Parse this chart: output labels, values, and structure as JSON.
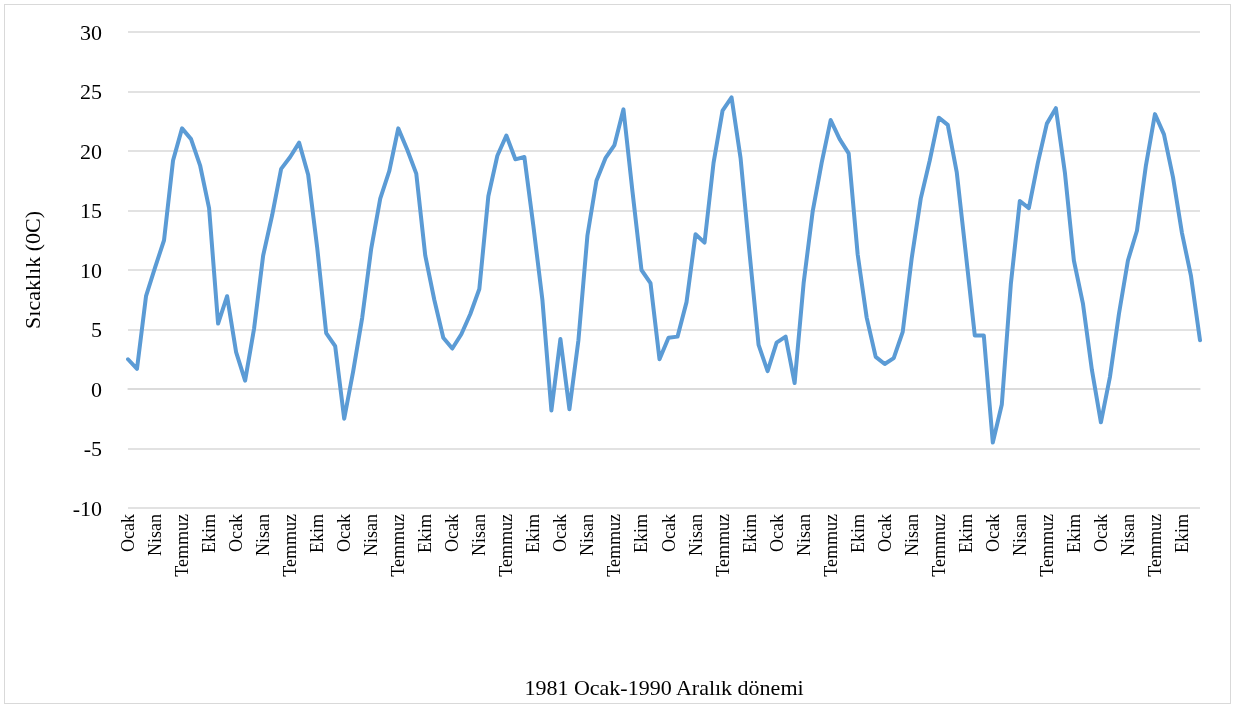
{
  "chart_data": {
    "type": "line",
    "xlabel": "1981 Ocak-1990 Aralık dönemi",
    "ylabel": "Sıcaklık (0C)",
    "categories": [
      "Ocak",
      null,
      null,
      "Nisan",
      null,
      null,
      "Temmuz",
      null,
      null,
      "Ekim",
      null,
      null,
      "Ocak",
      null,
      null,
      "Nisan",
      null,
      null,
      "Temmuz",
      null,
      null,
      "Ekim",
      null,
      null,
      "Ocak",
      null,
      null,
      "Nisan",
      null,
      null,
      "Temmuz",
      null,
      null,
      "Ekim",
      null,
      null,
      "Ocak",
      null,
      null,
      "Nisan",
      null,
      null,
      "Temmuz",
      null,
      null,
      "Ekim",
      null,
      null,
      "Ocak",
      null,
      null,
      "Nisan",
      null,
      null,
      "Temmuz",
      null,
      null,
      "Ekim",
      null,
      null,
      "Ocak",
      null,
      null,
      "Nisan",
      null,
      null,
      "Temmuz",
      null,
      null,
      "Ekim",
      null,
      null,
      "Ocak",
      null,
      null,
      "Nisan",
      null,
      null,
      "Temmuz",
      null,
      null,
      "Ekim",
      null,
      null,
      "Ocak",
      null,
      null,
      "Nisan",
      null,
      null,
      "Temmuz",
      null,
      null,
      "Ekim",
      null,
      null,
      "Ocak",
      null,
      null,
      "Nisan",
      null,
      null,
      "Temmuz",
      null,
      null,
      "Ekim",
      null,
      null,
      "Ocak",
      null,
      null,
      "Nisan",
      null,
      null,
      "Temmuz",
      null,
      null,
      "Ekim",
      null,
      null
    ],
    "series": [
      {
        "color": "#5b9bd5",
        "values": [
          2.5,
          1.7,
          7.8,
          10.2,
          12.5,
          19.2,
          21.9,
          21.0,
          18.8,
          15.2,
          5.5,
          7.8,
          3.1,
          0.7,
          5.1,
          11.2,
          14.6,
          18.5,
          19.5,
          20.7,
          18.0,
          11.9,
          4.7,
          3.6,
          -2.5,
          1.5,
          6.0,
          11.8,
          16.0,
          18.3,
          21.9,
          20.1,
          18.1,
          11.2,
          7.5,
          4.3,
          3.4,
          4.6,
          6.3,
          8.4,
          16.2,
          19.6,
          21.3,
          19.3,
          19.5,
          13.7,
          7.5,
          -1.8,
          4.2,
          -1.7,
          4.1,
          12.9,
          17.5,
          19.4,
          20.5,
          23.5,
          16.6,
          10.0,
          8.9,
          2.5,
          4.3,
          4.4,
          7.3,
          13.0,
          12.3,
          19.0,
          23.4,
          24.5,
          19.4,
          11.4,
          3.7,
          1.5,
          3.9,
          4.4,
          0.5,
          8.9,
          14.9,
          19.0,
          22.6,
          21.0,
          19.8,
          11.3,
          6.0,
          2.7,
          2.1,
          2.6,
          4.8,
          11.0,
          16.0,
          19.2,
          22.8,
          22.2,
          18.2,
          11.4,
          4.5,
          4.5,
          -4.5,
          -1.3,
          8.8,
          15.8,
          15.2,
          19.0,
          22.3,
          23.6,
          18.2,
          10.8,
          7.2,
          1.6,
          -2.8,
          1.0,
          6.3,
          10.8,
          13.3,
          18.8,
          23.1,
          21.4,
          17.8,
          13.1,
          9.5,
          4.1
        ]
      }
    ],
    "ylim": [
      -10,
      30
    ],
    "yticks": [
      -10,
      -5,
      0,
      5,
      10,
      15,
      20,
      25,
      30
    ],
    "grid": "y",
    "marker": "none",
    "line_style": "solid"
  }
}
